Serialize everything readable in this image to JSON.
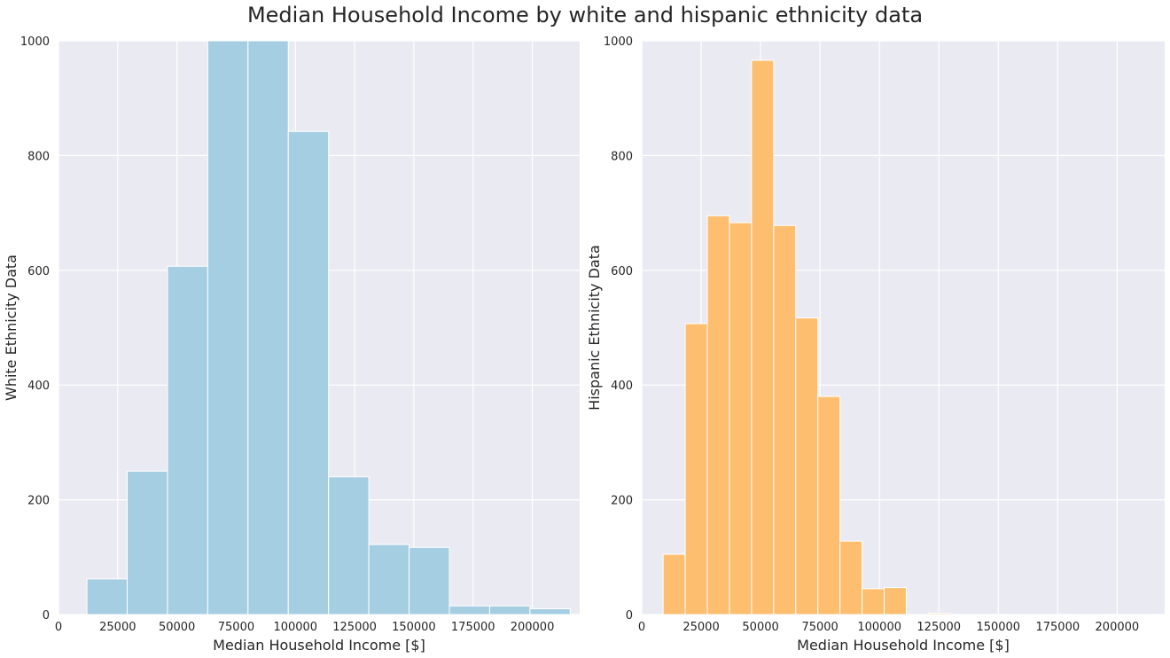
{
  "figure": {
    "title": "Median Household Income by white and hispanic ethnicity data"
  },
  "chart_data": [
    {
      "type": "bar",
      "subtype": "histogram",
      "xlabel": "Median Household Income [$]",
      "ylabel": "White Ethnicity Data",
      "xlim": [
        0,
        220000
      ],
      "ylim": [
        0,
        1000
      ],
      "xticks": [
        0,
        25000,
        50000,
        75000,
        100000,
        125000,
        150000,
        175000,
        200000
      ],
      "yticks": [
        0,
        200,
        400,
        600,
        800,
        1000
      ],
      "color": "#a6cee3",
      "grid": true,
      "bin_edges": [
        12000,
        29000,
        46000,
        63000,
        80000,
        97000,
        114000,
        131000,
        148000,
        165000,
        182000,
        199000,
        216000
      ],
      "values": [
        62,
        250,
        607,
        1000,
        1000,
        842,
        240,
        122,
        117,
        15,
        15,
        10
      ]
    },
    {
      "type": "bar",
      "subtype": "histogram",
      "xlabel": "Median Household Income [$]",
      "ylabel": "Hispanic Ethnicity Data",
      "xlim": [
        0,
        220000
      ],
      "ylim": [
        0,
        1000
      ],
      "xticks": [
        0,
        25000,
        50000,
        75000,
        100000,
        125000,
        150000,
        175000,
        200000
      ],
      "yticks": [
        0,
        200,
        400,
        600,
        800,
        1000
      ],
      "color": "#fdbf6f",
      "grid": true,
      "bin_edges": [
        9000,
        18300,
        27600,
        36900,
        46200,
        55500,
        64800,
        74100,
        83400,
        92700,
        102000,
        111300,
        120600,
        129900,
        139200,
        148500,
        157800,
        167100,
        176400,
        185700,
        195000,
        204300,
        213600
      ],
      "values": [
        105,
        507,
        695,
        683,
        966,
        678,
        517,
        380,
        128,
        45,
        47,
        0,
        2,
        0,
        0,
        0,
        0,
        0,
        0,
        0,
        0,
        0
      ]
    }
  ]
}
